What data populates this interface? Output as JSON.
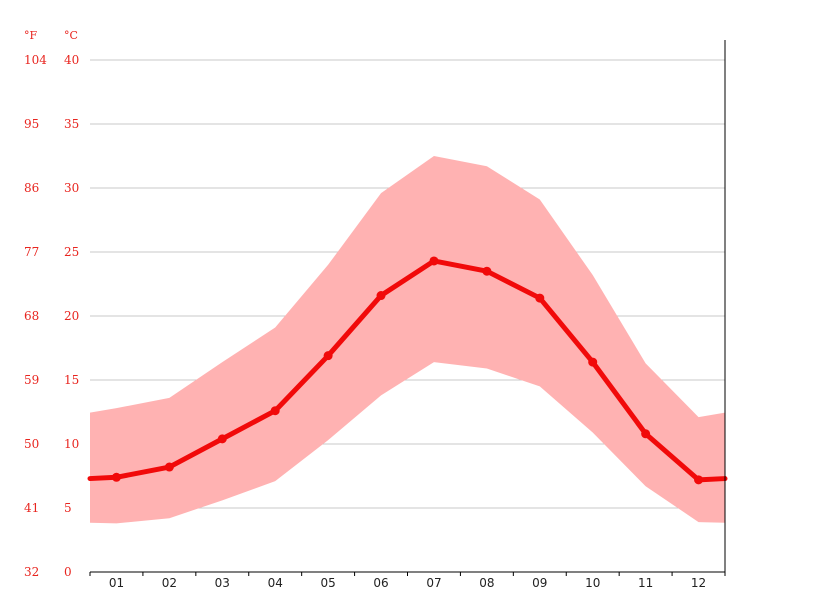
{
  "chart_data": {
    "type": "line",
    "unit_labels": {
      "fahrenheit": "°F",
      "celsius": "°C"
    },
    "y_ticks_celsius": [
      "0",
      "5",
      "10",
      "15",
      "20",
      "25",
      "30",
      "35",
      "40"
    ],
    "y_ticks_fahrenheit": [
      "32",
      "41",
      "50",
      "59",
      "68",
      "77",
      "86",
      "95",
      "104"
    ],
    "ylim": [
      0,
      40
    ],
    "categories": [
      "01",
      "02",
      "03",
      "04",
      "05",
      "06",
      "07",
      "08",
      "09",
      "10",
      "11",
      "12"
    ],
    "series": [
      {
        "values": [
          7.4,
          8.2,
          10.4,
          12.6,
          16.9,
          21.6,
          24.3,
          23.5,
          21.4,
          16.4,
          10.8,
          7.2
        ]
      }
    ],
    "band_max": [
      12.8,
      13.6,
      16.4,
      19.1,
      24.0,
      29.6,
      32.5,
      31.7,
      29.1,
      23.2,
      16.3,
      12.1
    ],
    "band_min": [
      3.8,
      4.2,
      5.6,
      7.1,
      10.3,
      13.8,
      16.4,
      15.9,
      14.5,
      10.9,
      6.7,
      3.9
    ],
    "grid": true,
    "colors": {
      "line": "#f10a0a",
      "band": "#ffb2b2",
      "tick_text": "#e8251f",
      "grid": "#c8c8c8"
    }
  }
}
